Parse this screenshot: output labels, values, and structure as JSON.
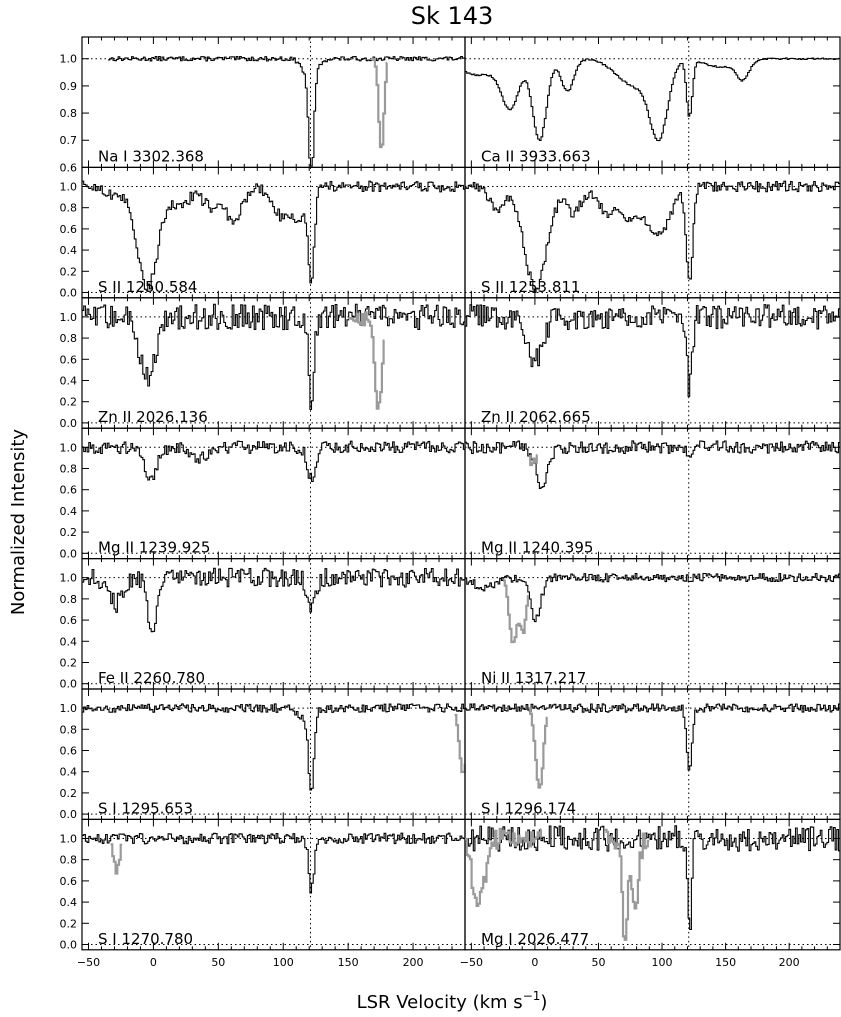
{
  "chart_data": {
    "type": "line",
    "title": "Sk 143",
    "xlabel": "LSR Velocity (km s",
    "xlabel_sup": "−1",
    "xlabel_close": ")",
    "ylabel": "Normalized Intensity",
    "xlim": [
      -55,
      240
    ],
    "x_ticks": [
      -50,
      0,
      50,
      100,
      150,
      200
    ],
    "grid": false,
    "legend": "none",
    "line_style": "histogram",
    "colors": {
      "main": "#000000",
      "blended": "#9a9a9a"
    },
    "reference_velocity": 121,
    "panels": [
      {
        "label": "Na I 3302.368",
        "ylim": [
          0.6,
          1.08
        ],
        "y_ticks": [
          "0.6",
          "0.7",
          "0.8",
          "0.9",
          "1.0"
        ],
        "x_start": -35,
        "noise": 0.008,
        "features": [
          [
            121,
            1.8,
            0.38
          ],
          [
            120,
            5,
            0.08
          ]
        ],
        "grey": [
          {
            "from": 168,
            "to": 180,
            "features": [
              [
                175,
                2,
                0.34
              ]
            ]
          }
        ]
      },
      {
        "label": "Ca II 3933.663",
        "ylim": [
          0.6,
          1.08
        ],
        "y_ticks": [],
        "noise": 0.003,
        "features": [
          [
            -45,
            15,
            0.06
          ],
          [
            -20,
            7,
            0.17
          ],
          [
            3,
            5.5,
            0.3
          ],
          [
            25,
            5,
            0.12
          ],
          [
            78,
            14,
            0.1
          ],
          [
            97,
            7,
            0.26
          ],
          [
            121,
            2.2,
            0.21
          ],
          [
            145,
            12,
            0.03
          ],
          [
            163,
            5,
            0.07
          ]
        ],
        "grey": []
      },
      {
        "label": "S II 1250.584",
        "ylim": [
          -0.05,
          1.18
        ],
        "y_ticks": [
          "0.0",
          "0.2",
          "0.4",
          "0.6",
          "0.8",
          "1.0"
        ],
        "noise": 0.05,
        "features": [
          [
            -30,
            6,
            0.1
          ],
          [
            -5,
            8,
            0.95
          ],
          [
            20,
            6,
            0.2
          ],
          [
            45,
            8,
            0.2
          ],
          [
            62,
            6,
            0.3
          ],
          [
            100,
            8,
            0.3
          ],
          [
            121,
            2.5,
            0.85
          ],
          [
            112,
            4,
            0.2
          ]
        ],
        "grey": []
      },
      {
        "label": "S II 1253.811",
        "ylim": [
          -0.05,
          1.18
        ],
        "y_ticks": [],
        "noise": 0.05,
        "features": [
          [
            -30,
            6,
            0.2
          ],
          [
            0,
            9,
            0.95
          ],
          [
            30,
            6,
            0.25
          ],
          [
            55,
            6,
            0.2
          ],
          [
            75,
            10,
            0.3
          ],
          [
            98,
            8,
            0.45
          ],
          [
            121,
            2.5,
            0.9
          ]
        ],
        "grey": []
      },
      {
        "label": "Zn II 2026.136",
        "ylim": [
          -0.05,
          1.18
        ],
        "y_ticks": [
          "0.0",
          "0.2",
          "0.4",
          "0.6",
          "0.8",
          "1.0"
        ],
        "noise": 0.12,
        "features": [
          [
            -5,
            6,
            0.55
          ],
          [
            121,
            2,
            0.9
          ]
        ],
        "grey": [
          {
            "from": 150,
            "to": 178,
            "features": [
              [
                173,
                2.5,
                0.9
              ]
            ]
          }
        ]
      },
      {
        "label": "Zn II 2062.665",
        "ylim": [
          -0.05,
          1.18
        ],
        "y_ticks": [],
        "noise": 0.12,
        "features": [
          [
            0,
            6,
            0.4
          ],
          [
            121,
            2,
            0.7
          ]
        ],
        "grey": []
      },
      {
        "label": "Mg II 1239.925",
        "ylim": [
          -0.05,
          1.18
        ],
        "y_ticks": [
          "0.0",
          "0.2",
          "0.4",
          "0.6",
          "0.8",
          "1.0"
        ],
        "noise": 0.06,
        "features": [
          [
            -3,
            5,
            0.3
          ],
          [
            121,
            3,
            0.3
          ],
          [
            35,
            6,
            0.1
          ]
        ],
        "grey": []
      },
      {
        "label": "Mg II 1240.395",
        "ylim": [
          -0.05,
          1.18
        ],
        "y_ticks": [],
        "noise": 0.06,
        "features": [
          [
            5,
            5,
            0.35
          ],
          [
            121,
            2,
            0.1
          ]
        ],
        "grey": [
          {
            "from": -5,
            "to": 2,
            "features": [
              [
                -2,
                3,
                0.15
              ]
            ]
          }
        ]
      },
      {
        "label": "Fe II 2260.780",
        "ylim": [
          -0.05,
          1.18
        ],
        "y_ticks": [
          "0.0",
          "0.2",
          "0.4",
          "0.6",
          "0.8",
          "1.0"
        ],
        "noise": 0.09,
        "features": [
          [
            -2,
            3,
            0.6
          ],
          [
            -30,
            5,
            0.25
          ],
          [
            121,
            3,
            0.3
          ]
        ],
        "grey": []
      },
      {
        "label": "Ni II 1317.217",
        "ylim": [
          -0.05,
          1.18
        ],
        "y_ticks": [],
        "noise": 0.04,
        "features": [
          [
            0,
            4,
            0.4
          ],
          [
            -40,
            8,
            0.1
          ]
        ],
        "grey": [
          {
            "from": -25,
            "to": -5,
            "features": [
              [
                -18,
                3,
                0.6
              ],
              [
                -10,
                3,
                0.5
              ]
            ]
          }
        ]
      },
      {
        "label": "S I 1295.653",
        "ylim": [
          -0.05,
          1.18
        ],
        "y_ticks": [
          "0.0",
          "0.2",
          "0.4",
          "0.6",
          "0.8",
          "1.0"
        ],
        "noise": 0.04,
        "features": [
          [
            121,
            2,
            0.75
          ],
          [
            116,
            5,
            0.1
          ]
        ],
        "grey": [
          {
            "from": 232,
            "to": 240,
            "features": [
              [
                238,
                3,
                0.6
              ]
            ]
          }
        ]
      },
      {
        "label": "S I 1296.174",
        "ylim": [
          -0.05,
          1.18
        ],
        "y_ticks": [],
        "noise": 0.04,
        "features": [
          [
            121,
            2,
            0.6
          ]
        ],
        "grey": [
          {
            "from": -5,
            "to": 10,
            "features": [
              [
                3,
                3,
                0.75
              ]
            ]
          }
        ]
      },
      {
        "label": "S I 1270.780",
        "ylim": [
          -0.05,
          1.18
        ],
        "y_ticks": [
          "0.0",
          "0.2",
          "0.4",
          "0.6",
          "0.8",
          "1.0"
        ],
        "noise": 0.05,
        "features": [
          [
            121,
            2,
            0.5
          ]
        ],
        "grey": [
          {
            "from": -33,
            "to": -24,
            "features": [
              [
                -29,
                2.5,
                0.3
              ]
            ]
          }
        ]
      },
      {
        "label": "Mg I 2026.477",
        "ylim": [
          -0.05,
          1.18
        ],
        "y_ticks": [],
        "noise": 0.12,
        "features": [
          [
            121,
            1.5,
            0.9
          ]
        ],
        "grey": [
          {
            "from": -55,
            "to": 5,
            "features": [
              [
                -45,
                5,
                0.6
              ]
            ]
          },
          {
            "from": 55,
            "to": 90,
            "features": [
              [
                70,
                2,
                0.95
              ],
              [
                78,
                3,
                0.6
              ]
            ]
          }
        ]
      }
    ]
  }
}
